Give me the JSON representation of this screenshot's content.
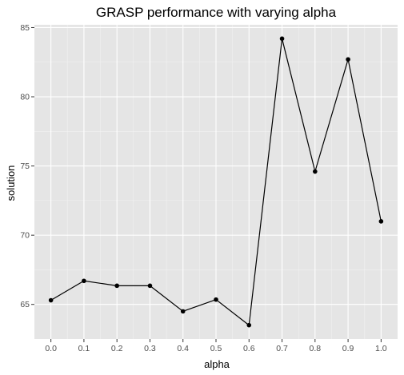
{
  "chart_data": {
    "type": "line",
    "title": "GRASP performance with varying alpha",
    "xlabel": "alpha",
    "ylabel": "solution",
    "x": [
      0.0,
      0.1,
      0.2,
      0.3,
      0.4,
      0.5,
      0.6,
      0.7,
      0.8,
      0.9,
      1.0
    ],
    "values": [
      65.3,
      66.7,
      66.35,
      66.35,
      64.5,
      65.35,
      63.5,
      84.2,
      74.6,
      82.7,
      71.0
    ],
    "xlim": [
      -0.05,
      1.05
    ],
    "ylim": [
      62.5,
      85.2
    ],
    "x_ticks": [
      "0.0",
      "0.1",
      "0.2",
      "0.3",
      "0.4",
      "0.5",
      "0.6",
      "0.7",
      "0.8",
      "0.9",
      "1.0"
    ],
    "y_ticks": [
      65,
      70,
      75,
      80,
      85
    ],
    "grid": true,
    "colors": {
      "panel_background": "#e5e5e5",
      "grid_major": "#ffffff",
      "grid_minor": "#f2f2f2",
      "line": "#000000",
      "point": "#000000",
      "tick_text": "#4d4d4d"
    }
  }
}
